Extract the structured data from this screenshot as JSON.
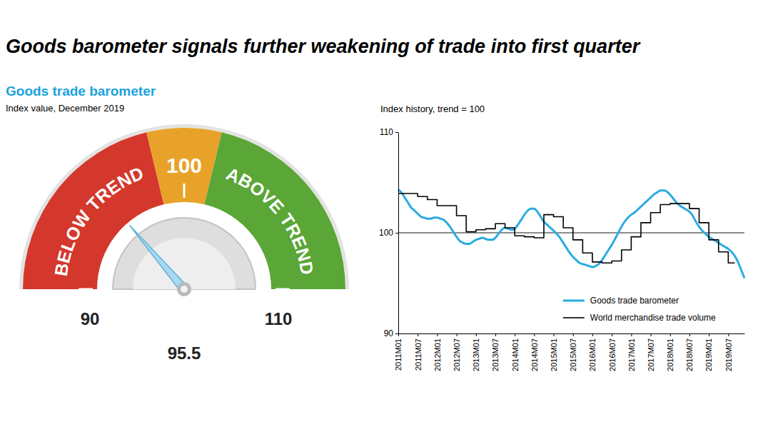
{
  "title": "Goods barometer signals further weakening of trade into first quarter",
  "chart_data": [
    {
      "type": "gauge",
      "title": "Goods trade barometer",
      "subtitle": "Index value, December 2019",
      "value": 95.5,
      "data_labels": true,
      "ylim": [
        90,
        110
      ],
      "yticks": [
        90,
        100,
        110
      ],
      "bands": [
        {
          "from": 90,
          "to": 98.5,
          "label": "BELOW TREND",
          "color": "#d4382c"
        },
        {
          "from": 98.5,
          "to": 101.5,
          "color": "#e8a22a"
        },
        {
          "from": 101.5,
          "to": 110,
          "label": "ABOVE TREND",
          "color": "#5aa636"
        }
      ]
    },
    {
      "type": "line",
      "title": "Index history, trend = 100",
      "categories": [
        "2011M01",
        null,
        null,
        null,
        null,
        null,
        "2011M07",
        null,
        null,
        null,
        null,
        null,
        "2012M01",
        null,
        null,
        null,
        null,
        null,
        "2012M07",
        null,
        null,
        null,
        null,
        null,
        "2013M01",
        null,
        null,
        null,
        null,
        null,
        "2013M07",
        null,
        null,
        null,
        null,
        null,
        "2014M01",
        null,
        null,
        null,
        null,
        null,
        "2014M07",
        null,
        null,
        null,
        null,
        null,
        "2015M01",
        null,
        null,
        null,
        null,
        null,
        "2015M07",
        null,
        null,
        null,
        null,
        null,
        "2016M01",
        null,
        null,
        null,
        null,
        null,
        "2016M07",
        null,
        null,
        null,
        null,
        null,
        "2017M01",
        null,
        null,
        null,
        null,
        null,
        "2017M07",
        null,
        null,
        null,
        null,
        null,
        "2018M01",
        null,
        null,
        null,
        null,
        null,
        "2018M07",
        null,
        null,
        null,
        null,
        null,
        "2019M01",
        null,
        null,
        null,
        null,
        null,
        "2019M07",
        null,
        null,
        null,
        null,
        null
      ],
      "series": [
        {
          "name": "Goods trade barometer",
          "color": "#29abe2",
          "line_style": "solid",
          "values": [
            104.3,
            104.0,
            103.5,
            103.0,
            102.5,
            102.2,
            101.9,
            101.6,
            101.5,
            101.4,
            101.4,
            101.5,
            101.5,
            101.4,
            101.3,
            101.0,
            100.6,
            100.1,
            99.6,
            99.2,
            99.0,
            98.9,
            98.9,
            99.1,
            99.3,
            99.4,
            99.5,
            99.4,
            99.3,
            99.3,
            99.5,
            99.9,
            100.3,
            100.5,
            100.4,
            100.3,
            100.4,
            100.8,
            101.3,
            101.8,
            102.2,
            102.4,
            102.4,
            102.1,
            101.6,
            101.1,
            100.8,
            100.5,
            100.2,
            99.9,
            99.5,
            99.0,
            98.5,
            98.0,
            97.6,
            97.3,
            97.0,
            96.9,
            96.8,
            96.7,
            96.6,
            96.7,
            96.9,
            97.3,
            97.8,
            98.3,
            98.8,
            99.4,
            100.0,
            100.6,
            101.1,
            101.5,
            101.8,
            102.0,
            102.3,
            102.6,
            102.9,
            103.2,
            103.5,
            103.8,
            104.0,
            104.2,
            104.2,
            104.1,
            103.8,
            103.4,
            103.0,
            102.7,
            102.5,
            102.3,
            102.1,
            101.7,
            101.1,
            100.6,
            100.2,
            99.9,
            99.6,
            99.4,
            99.2,
            99.0,
            98.8,
            98.6,
            98.4,
            98.1,
            97.7,
            97.1,
            96.3,
            95.5
          ]
        },
        {
          "name": "World merchandise trade volume",
          "color": "#000000",
          "line_style": "step",
          "values": [
            103.9,
            103.9,
            103.9,
            103.9,
            103.9,
            103.9,
            103.6,
            103.6,
            103.6,
            103.3,
            103.3,
            103.3,
            102.7,
            102.7,
            102.7,
            102.7,
            102.7,
            102.7,
            101.7,
            101.7,
            101.7,
            100.1,
            100.1,
            100.1,
            100.3,
            100.3,
            100.3,
            100.4,
            100.4,
            100.4,
            100.9,
            100.9,
            100.9,
            100.5,
            100.5,
            100.5,
            99.7,
            99.7,
            99.7,
            99.6,
            99.6,
            99.6,
            99.5,
            99.5,
            99.5,
            101.8,
            101.8,
            101.8,
            101.6,
            101.6,
            101.6,
            100.5,
            100.5,
            100.5,
            99.3,
            99.3,
            99.3,
            98.0,
            98.0,
            98.0,
            97.1,
            97.1,
            97.1,
            97.0,
            97.0,
            97.0,
            97.2,
            97.2,
            97.2,
            98.3,
            98.3,
            98.3,
            99.6,
            99.6,
            99.6,
            101.0,
            101.0,
            101.0,
            102.0,
            102.0,
            102.0,
            102.8,
            102.8,
            102.8,
            102.9,
            102.9,
            102.9,
            102.9,
            102.9,
            102.9,
            102.4,
            102.4,
            102.4,
            101.0,
            101.0,
            101.0,
            99.3,
            99.3,
            99.3,
            98.1,
            98.1,
            98.1,
            97.0,
            97.0,
            97.0,
            null,
            null,
            null
          ]
        }
      ],
      "ylim": [
        90,
        110
      ],
      "yticks": [
        90,
        100,
        110
      ],
      "reference_line": 100,
      "grid": false,
      "legend": "lower right"
    }
  ]
}
